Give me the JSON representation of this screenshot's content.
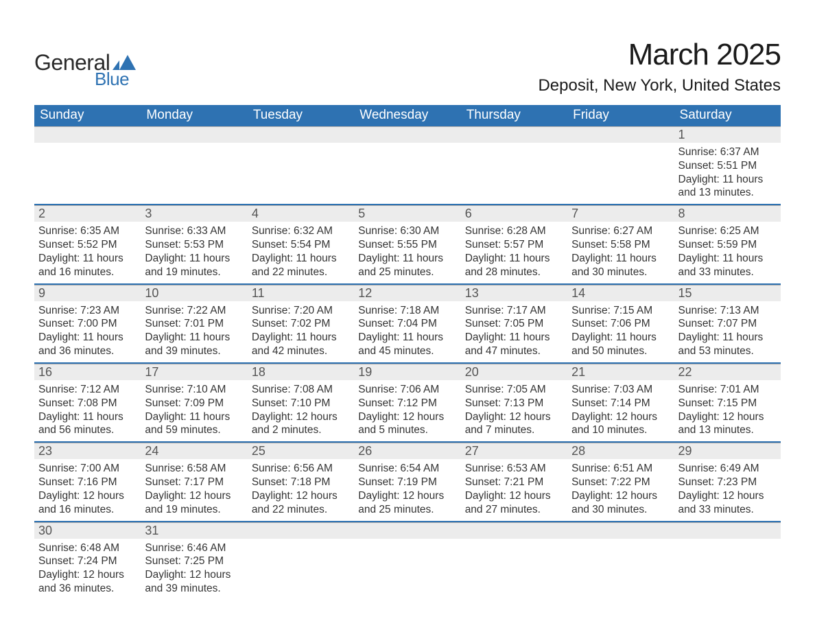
{
  "logo": {
    "word1": "General",
    "word2": "Blue",
    "accent_color": "#2e72b2",
    "text_color": "#2a2a2a"
  },
  "title": "March 2025",
  "location": "Deposit, New York, United States",
  "colors": {
    "header_bg": "#2e72b2",
    "header_fg": "#ffffff",
    "daynum_bg": "#ececec",
    "daynum_fg": "#555555",
    "body_text": "#333333",
    "row_divider": "#2e72b2",
    "daynum_border": "#a8a8a8",
    "page_bg": "#ffffff"
  },
  "fonts": {
    "title_size": 44,
    "location_size": 24,
    "dow_size": 19,
    "daynum_size": 18,
    "body_size": 15.5
  },
  "days_of_week": [
    "Sunday",
    "Monday",
    "Tuesday",
    "Wednesday",
    "Thursday",
    "Friday",
    "Saturday"
  ],
  "weeks": [
    [
      null,
      null,
      null,
      null,
      null,
      null,
      {
        "n": "1",
        "sunrise": "Sunrise: 6:37 AM",
        "sunset": "Sunset: 5:51 PM",
        "daylight": "Daylight: 11 hours and 13 minutes."
      }
    ],
    [
      {
        "n": "2",
        "sunrise": "Sunrise: 6:35 AM",
        "sunset": "Sunset: 5:52 PM",
        "daylight": "Daylight: 11 hours and 16 minutes."
      },
      {
        "n": "3",
        "sunrise": "Sunrise: 6:33 AM",
        "sunset": "Sunset: 5:53 PM",
        "daylight": "Daylight: 11 hours and 19 minutes."
      },
      {
        "n": "4",
        "sunrise": "Sunrise: 6:32 AM",
        "sunset": "Sunset: 5:54 PM",
        "daylight": "Daylight: 11 hours and 22 minutes."
      },
      {
        "n": "5",
        "sunrise": "Sunrise: 6:30 AM",
        "sunset": "Sunset: 5:55 PM",
        "daylight": "Daylight: 11 hours and 25 minutes."
      },
      {
        "n": "6",
        "sunrise": "Sunrise: 6:28 AM",
        "sunset": "Sunset: 5:57 PM",
        "daylight": "Daylight: 11 hours and 28 minutes."
      },
      {
        "n": "7",
        "sunrise": "Sunrise: 6:27 AM",
        "sunset": "Sunset: 5:58 PM",
        "daylight": "Daylight: 11 hours and 30 minutes."
      },
      {
        "n": "8",
        "sunrise": "Sunrise: 6:25 AM",
        "sunset": "Sunset: 5:59 PM",
        "daylight": "Daylight: 11 hours and 33 minutes."
      }
    ],
    [
      {
        "n": "9",
        "sunrise": "Sunrise: 7:23 AM",
        "sunset": "Sunset: 7:00 PM",
        "daylight": "Daylight: 11 hours and 36 minutes."
      },
      {
        "n": "10",
        "sunrise": "Sunrise: 7:22 AM",
        "sunset": "Sunset: 7:01 PM",
        "daylight": "Daylight: 11 hours and 39 minutes."
      },
      {
        "n": "11",
        "sunrise": "Sunrise: 7:20 AM",
        "sunset": "Sunset: 7:02 PM",
        "daylight": "Daylight: 11 hours and 42 minutes."
      },
      {
        "n": "12",
        "sunrise": "Sunrise: 7:18 AM",
        "sunset": "Sunset: 7:04 PM",
        "daylight": "Daylight: 11 hours and 45 minutes."
      },
      {
        "n": "13",
        "sunrise": "Sunrise: 7:17 AM",
        "sunset": "Sunset: 7:05 PM",
        "daylight": "Daylight: 11 hours and 47 minutes."
      },
      {
        "n": "14",
        "sunrise": "Sunrise: 7:15 AM",
        "sunset": "Sunset: 7:06 PM",
        "daylight": "Daylight: 11 hours and 50 minutes."
      },
      {
        "n": "15",
        "sunrise": "Sunrise: 7:13 AM",
        "sunset": "Sunset: 7:07 PM",
        "daylight": "Daylight: 11 hours and 53 minutes."
      }
    ],
    [
      {
        "n": "16",
        "sunrise": "Sunrise: 7:12 AM",
        "sunset": "Sunset: 7:08 PM",
        "daylight": "Daylight: 11 hours and 56 minutes."
      },
      {
        "n": "17",
        "sunrise": "Sunrise: 7:10 AM",
        "sunset": "Sunset: 7:09 PM",
        "daylight": "Daylight: 11 hours and 59 minutes."
      },
      {
        "n": "18",
        "sunrise": "Sunrise: 7:08 AM",
        "sunset": "Sunset: 7:10 PM",
        "daylight": "Daylight: 12 hours and 2 minutes."
      },
      {
        "n": "19",
        "sunrise": "Sunrise: 7:06 AM",
        "sunset": "Sunset: 7:12 PM",
        "daylight": "Daylight: 12 hours and 5 minutes."
      },
      {
        "n": "20",
        "sunrise": "Sunrise: 7:05 AM",
        "sunset": "Sunset: 7:13 PM",
        "daylight": "Daylight: 12 hours and 7 minutes."
      },
      {
        "n": "21",
        "sunrise": "Sunrise: 7:03 AM",
        "sunset": "Sunset: 7:14 PM",
        "daylight": "Daylight: 12 hours and 10 minutes."
      },
      {
        "n": "22",
        "sunrise": "Sunrise: 7:01 AM",
        "sunset": "Sunset: 7:15 PM",
        "daylight": "Daylight: 12 hours and 13 minutes."
      }
    ],
    [
      {
        "n": "23",
        "sunrise": "Sunrise: 7:00 AM",
        "sunset": "Sunset: 7:16 PM",
        "daylight": "Daylight: 12 hours and 16 minutes."
      },
      {
        "n": "24",
        "sunrise": "Sunrise: 6:58 AM",
        "sunset": "Sunset: 7:17 PM",
        "daylight": "Daylight: 12 hours and 19 minutes."
      },
      {
        "n": "25",
        "sunrise": "Sunrise: 6:56 AM",
        "sunset": "Sunset: 7:18 PM",
        "daylight": "Daylight: 12 hours and 22 minutes."
      },
      {
        "n": "26",
        "sunrise": "Sunrise: 6:54 AM",
        "sunset": "Sunset: 7:19 PM",
        "daylight": "Daylight: 12 hours and 25 minutes."
      },
      {
        "n": "27",
        "sunrise": "Sunrise: 6:53 AM",
        "sunset": "Sunset: 7:21 PM",
        "daylight": "Daylight: 12 hours and 27 minutes."
      },
      {
        "n": "28",
        "sunrise": "Sunrise: 6:51 AM",
        "sunset": "Sunset: 7:22 PM",
        "daylight": "Daylight: 12 hours and 30 minutes."
      },
      {
        "n": "29",
        "sunrise": "Sunrise: 6:49 AM",
        "sunset": "Sunset: 7:23 PM",
        "daylight": "Daylight: 12 hours and 33 minutes."
      }
    ],
    [
      {
        "n": "30",
        "sunrise": "Sunrise: 6:48 AM",
        "sunset": "Sunset: 7:24 PM",
        "daylight": "Daylight: 12 hours and 36 minutes."
      },
      {
        "n": "31",
        "sunrise": "Sunrise: 6:46 AM",
        "sunset": "Sunset: 7:25 PM",
        "daylight": "Daylight: 12 hours and 39 minutes."
      },
      null,
      null,
      null,
      null,
      null
    ]
  ]
}
